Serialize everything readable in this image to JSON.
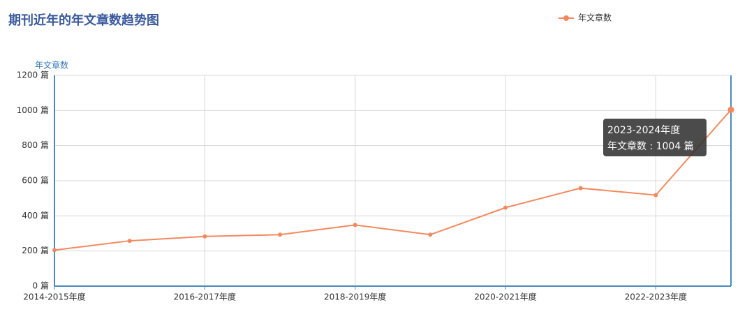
{
  "chart_data": {
    "type": "line",
    "title": "期刊近年的年文章数趋势图",
    "y_axis_label": "年文章数",
    "categories": [
      "2014-2015年度",
      null,
      "2016-2017年度",
      null,
      "2018-2019年度",
      null,
      "2020-2021年度",
      null,
      "2022-2023年度",
      null
    ],
    "series": [
      {
        "name": "年文章数",
        "color": "#f4895f",
        "values": [
          205,
          258,
          283,
          293,
          348,
          293,
          447,
          558,
          518,
          1004
        ]
      }
    ],
    "ylim": [
      0,
      1200
    ],
    "yticks": [
      {
        "value": 0,
        "label": "0 篇"
      },
      {
        "value": 200,
        "label": "200 篇"
      },
      {
        "value": 400,
        "label": "400 篇"
      },
      {
        "value": 600,
        "label": "600 篇"
      },
      {
        "value": 800,
        "label": "800 篇"
      },
      {
        "value": 1000,
        "label": "1000 篇"
      },
      {
        "value": 1200,
        "label": "1200 篇"
      }
    ],
    "grid": true,
    "legend_position": "top-right",
    "tooltip": {
      "title": "2023-2024年度",
      "text": "年文章数 : 1004 篇",
      "index": 9
    }
  }
}
